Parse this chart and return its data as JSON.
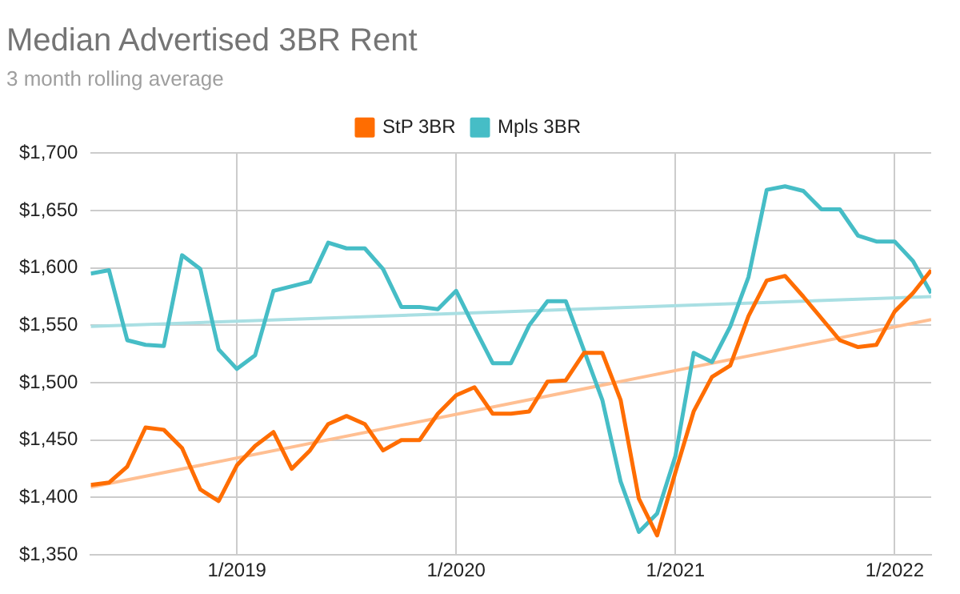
{
  "chart_data": {
    "type": "line",
    "title": "Median Advertised 3BR Rent",
    "subtitle": "3 month rolling average",
    "x": [
      "2018-05",
      "2018-06",
      "2018-07",
      "2018-08",
      "2018-09",
      "2018-10",
      "2018-11",
      "2018-12",
      "2019-01",
      "2019-02",
      "2019-03",
      "2019-04",
      "2019-05",
      "2019-06",
      "2019-07",
      "2019-08",
      "2019-09",
      "2019-10",
      "2019-11",
      "2019-12",
      "2020-01",
      "2020-02",
      "2020-03",
      "2020-04",
      "2020-05",
      "2020-06",
      "2020-07",
      "2020-08",
      "2020-09",
      "2020-10",
      "2020-11",
      "2020-12",
      "2021-01",
      "2021-02",
      "2021-03",
      "2021-04",
      "2021-05",
      "2021-06",
      "2021-07",
      "2021-08",
      "2021-09",
      "2021-10",
      "2021-11",
      "2021-12",
      "2022-01",
      "2022-02",
      "2022-03"
    ],
    "series": [
      {
        "name": "StP 3BR",
        "color": "#ff6d01",
        "values": [
          1411,
          1413,
          1427,
          1461,
          1459,
          1443,
          1407,
          1397,
          1428,
          1445,
          1457,
          1425,
          1441,
          1464,
          1471,
          1464,
          1441,
          1450,
          1450,
          1473,
          1489,
          1496,
          1473,
          1473,
          1475,
          1501,
          1502,
          1526,
          1526,
          1485,
          1399,
          1367,
          1422,
          1475,
          1505,
          1515,
          1558,
          1589,
          1593,
          1575,
          1556,
          1537,
          1531,
          1533,
          1562,
          1578,
          1598
        ]
      },
      {
        "name": "Mpls 3BR",
        "color": "#46bdc6",
        "values": [
          1595,
          1598,
          1537,
          1533,
          1532,
          1611,
          1599,
          1529,
          1512,
          1524,
          1580,
          1584,
          1588,
          1622,
          1617,
          1617,
          1599,
          1566,
          1566,
          1564,
          1580,
          1548,
          1517,
          1517,
          1550,
          1571,
          1571,
          1528,
          1485,
          1414,
          1370,
          1386,
          1436,
          1526,
          1518,
          1549,
          1592,
          1668,
          1671,
          1667,
          1651,
          1651,
          1628,
          1623,
          1623,
          1606,
          1578
        ]
      },
      {
        "type": "line",
        "color": "#ffbf92",
        "x": [
          "2018-05",
          "2022-03"
        ],
        "values": [
          1409,
          1555
        ]
      },
      {
        "type": "line",
        "color": "#a9dfe3",
        "x": [
          "2018-05",
          "2022-03"
        ],
        "values": [
          1549,
          1575
        ]
      }
    ],
    "xlim": [
      "2018-05",
      "2022-03"
    ],
    "xticks": [
      {
        "value": "2019-01",
        "label": "1/2019"
      },
      {
        "value": "2020-01",
        "label": "1/2020"
      },
      {
        "value": "2021-01",
        "label": "1/2021"
      },
      {
        "value": "2022-01",
        "label": "1/2022"
      }
    ],
    "ylim": [
      1350,
      1700
    ],
    "yticks": [
      {
        "value": 1350,
        "label": "$1,350"
      },
      {
        "value": 1400,
        "label": "$1,400"
      },
      {
        "value": 1450,
        "label": "$1,450"
      },
      {
        "value": 1500,
        "label": "$1,500"
      },
      {
        "value": 1550,
        "label": "$1,550"
      },
      {
        "value": 1600,
        "label": "$1,600"
      },
      {
        "value": 1650,
        "label": "$1,650"
      },
      {
        "value": 1700,
        "label": "$1,700"
      }
    ],
    "grid": true,
    "legend": "top",
    "marker": "none",
    "line_style": "solid"
  }
}
